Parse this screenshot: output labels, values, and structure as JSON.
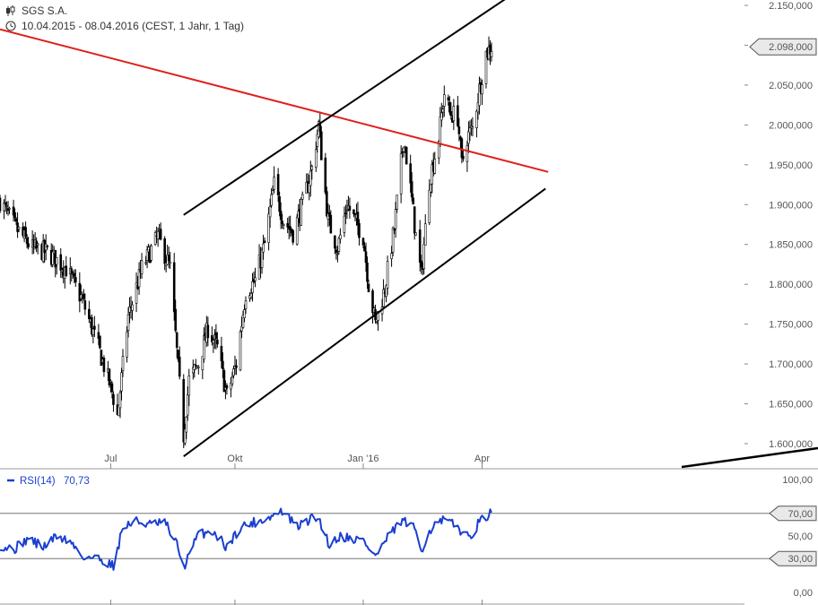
{
  "header": {
    "instrument": "SGS S.A.",
    "period": "10.04.2015 - 08.04.2016 (CEST, 1 Jahr, 1 Tag)"
  },
  "colors": {
    "candle": "#000000",
    "trend_red": "#e0201b",
    "channel": "#000000",
    "rsi_line": "#1a3fcf",
    "grid": "#c8c8c8",
    "badge_fill": "#e9e9e9"
  },
  "icons": {
    "title": "candlestick-icon",
    "period": "clock-icon"
  },
  "chart_data": [
    {
      "type": "candlestick",
      "title": "SGS S.A.",
      "subtitle": "10.04.2015 - 08.04.2016 (CEST, 1 Jahr, 1 Tag)",
      "x_range": [
        "2015-04-10",
        "2016-04-08"
      ],
      "ylim": [
        1576000,
        2156000
      ],
      "y_ticks": [
        1600000,
        1650000,
        1700000,
        1750000,
        1800000,
        1850000,
        1900000,
        1950000,
        2000000,
        2050000,
        2100000,
        2150000
      ],
      "y_tick_labels": [
        "1.600,000",
        "1.650,000",
        "1.700,000",
        "1.750,000",
        "1.800,000",
        "1.850,000",
        "1.900,000",
        "1.950,000",
        "2.000,000",
        "2.050,000",
        "2.100,000",
        "2.150,000"
      ],
      "x_ticks": [
        {
          "date": "2015-07-01",
          "label": "Jul"
        },
        {
          "date": "2015-10-01",
          "label": "Okt"
        },
        {
          "date": "2016-01-04",
          "label": "Jan '16"
        },
        {
          "date": "2016-04-01",
          "label": "Apr"
        }
      ],
      "last_value": 2098000,
      "last_value_label": "2.098,000",
      "grid": false,
      "anchor_closes": [
        [
          "2015-04-10",
          1905000
        ],
        [
          "2015-04-22",
          1870000
        ],
        [
          "2015-05-04",
          1845000
        ],
        [
          "2015-05-15",
          1840000
        ],
        [
          "2015-05-29",
          1820000
        ],
        [
          "2015-06-10",
          1780000
        ],
        [
          "2015-06-22",
          1720000
        ],
        [
          "2015-07-02",
          1665000
        ],
        [
          "2015-07-06",
          1635000
        ],
        [
          "2015-07-14",
          1760000
        ],
        [
          "2015-07-24",
          1820000
        ],
        [
          "2015-08-05",
          1860000
        ],
        [
          "2015-08-14",
          1820000
        ],
        [
          "2015-08-24",
          1610000
        ],
        [
          "2015-08-28",
          1680000
        ],
        [
          "2015-09-04",
          1700000
        ],
        [
          "2015-09-11",
          1745000
        ],
        [
          "2015-09-18",
          1720000
        ],
        [
          "2015-09-25",
          1660000
        ],
        [
          "2015-10-02",
          1700000
        ],
        [
          "2015-10-09",
          1790000
        ],
        [
          "2015-10-16",
          1805000
        ],
        [
          "2015-10-23",
          1850000
        ],
        [
          "2015-10-30",
          1925000
        ],
        [
          "2015-11-06",
          1880000
        ],
        [
          "2015-11-13",
          1865000
        ],
        [
          "2015-11-20",
          1900000
        ],
        [
          "2015-11-27",
          1945000
        ],
        [
          "2015-12-02",
          2000000
        ],
        [
          "2015-12-09",
          1880000
        ],
        [
          "2015-12-16",
          1845000
        ],
        [
          "2015-12-23",
          1900000
        ],
        [
          "2016-01-04",
          1860000
        ],
        [
          "2016-01-08",
          1800000
        ],
        [
          "2016-01-13",
          1750000
        ],
        [
          "2016-01-20",
          1795000
        ],
        [
          "2016-01-27",
          1870000
        ],
        [
          "2016-02-03",
          1985000
        ],
        [
          "2016-02-08",
          1920000
        ],
        [
          "2016-02-12",
          1860000
        ],
        [
          "2016-02-16",
          1810000
        ],
        [
          "2016-02-22",
          1930000
        ],
        [
          "2016-02-29",
          1985000
        ],
        [
          "2016-03-04",
          2040000
        ],
        [
          "2016-03-08",
          2015000
        ],
        [
          "2016-03-14",
          2010000
        ],
        [
          "2016-03-17",
          1950000
        ],
        [
          "2016-03-21",
          1985000
        ],
        [
          "2016-03-25",
          1995000
        ],
        [
          "2016-03-30",
          2045000
        ],
        [
          "2016-04-04",
          2090000
        ],
        [
          "2016-04-08",
          2098000
        ]
      ],
      "lines": [
        {
          "kind": "trendline",
          "color": "#e0201b",
          "from": [
            "2015-04-10",
            2120000
          ],
          "to": [
            "2016-05-20",
            1941000
          ]
        },
        {
          "kind": "channel-upper",
          "color": "#000000",
          "from": [
            "2015-08-24",
            1887000
          ],
          "to": [
            "2016-04-20",
            2160000
          ]
        },
        {
          "kind": "channel-lower",
          "color": "#000000",
          "from": [
            "2015-08-24",
            1584000
          ],
          "to": [
            "2016-05-18",
            1920000
          ]
        }
      ]
    },
    {
      "type": "line",
      "title": "RSI(14)",
      "legend_label": "RSI(14)",
      "last_value": 70.73,
      "last_value_label": "70,73",
      "ylim": [
        0,
        100
      ],
      "y_ticks": [
        0,
        50,
        100
      ],
      "y_tick_labels": [
        "0,00",
        "50,00",
        "100,00"
      ],
      "reference_lines": [
        {
          "value": 70,
          "label": "70,00"
        },
        {
          "value": 30,
          "label": "30,00"
        }
      ],
      "anchor_values": [
        [
          "2015-04-10",
          42
        ],
        [
          "2015-04-20",
          38
        ],
        [
          "2015-05-01",
          48
        ],
        [
          "2015-05-12",
          40
        ],
        [
          "2015-05-22",
          50
        ],
        [
          "2015-06-01",
          45
        ],
        [
          "2015-06-10",
          32
        ],
        [
          "2015-06-22",
          30
        ],
        [
          "2015-07-03",
          24
        ],
        [
          "2015-07-10",
          58
        ],
        [
          "2015-07-20",
          63
        ],
        [
          "2015-07-31",
          60
        ],
        [
          "2015-08-10",
          62
        ],
        [
          "2015-08-20",
          40
        ],
        [
          "2015-08-24",
          22
        ],
        [
          "2015-09-04",
          52
        ],
        [
          "2015-09-15",
          54
        ],
        [
          "2015-09-25",
          40
        ],
        [
          "2015-10-05",
          58
        ],
        [
          "2015-10-15",
          62
        ],
        [
          "2015-10-26",
          66
        ],
        [
          "2015-11-05",
          72
        ],
        [
          "2015-11-16",
          58
        ],
        [
          "2015-11-26",
          65
        ],
        [
          "2015-12-02",
          66
        ],
        [
          "2015-12-10",
          42
        ],
        [
          "2015-12-18",
          50
        ],
        [
          "2016-01-04",
          46
        ],
        [
          "2016-01-13",
          32
        ],
        [
          "2016-01-22",
          48
        ],
        [
          "2016-02-02",
          64
        ],
        [
          "2016-02-12",
          55
        ],
        [
          "2016-02-16",
          38
        ],
        [
          "2016-02-24",
          58
        ],
        [
          "2016-03-04",
          64
        ],
        [
          "2016-03-14",
          58
        ],
        [
          "2016-03-22",
          48
        ],
        [
          "2016-03-30",
          62
        ],
        [
          "2016-04-08",
          70.73
        ]
      ]
    }
  ]
}
